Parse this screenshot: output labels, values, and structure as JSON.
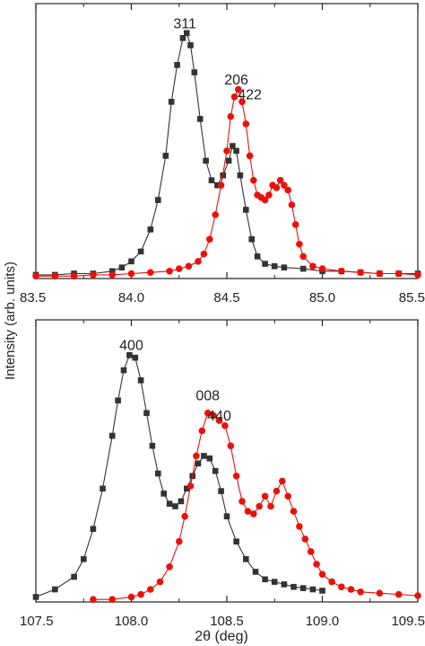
{
  "figure": {
    "ylabel": "Intensity (arb. units)",
    "xlabel": "2θ (deg)"
  },
  "colors": {
    "black_series": "#333333",
    "red_series": "#e8120c",
    "axis": "#222222"
  },
  "chart_data": [
    {
      "type": "line",
      "xlim": [
        83.5,
        85.5
      ],
      "ylim": [
        0,
        1.12
      ],
      "xticks": [
        "83.5",
        "84.0",
        "84.5",
        "85.0",
        "85.5"
      ],
      "grid": false,
      "annotations": [
        {
          "text": "311",
          "x": 84.28,
          "y": 1.02
        },
        {
          "text": "206",
          "x": 84.55,
          "y": 0.79
        },
        {
          "text": "422",
          "x": 84.62,
          "y": 0.73
        }
      ],
      "series": [
        {
          "color": "#333333",
          "marker": "square",
          "x": [
            83.5,
            83.6,
            83.7,
            83.8,
            83.9,
            83.95,
            84.0,
            84.05,
            84.1,
            84.14,
            84.18,
            84.21,
            84.24,
            84.27,
            84.29,
            84.31,
            84.33,
            84.36,
            84.39,
            84.42,
            84.45,
            84.48,
            84.51,
            84.53,
            84.55,
            84.57,
            84.6,
            84.63,
            84.66,
            84.7,
            84.75,
            84.8,
            84.9,
            85.0,
            85.1,
            85.2,
            85.3,
            85.4,
            85.5
          ],
          "y": [
            0.015,
            0.015,
            0.02,
            0.02,
            0.03,
            0.045,
            0.07,
            0.11,
            0.2,
            0.32,
            0.5,
            0.72,
            0.87,
            0.98,
            1.0,
            0.95,
            0.84,
            0.65,
            0.48,
            0.4,
            0.38,
            0.42,
            0.48,
            0.54,
            0.52,
            0.42,
            0.28,
            0.16,
            0.09,
            0.06,
            0.05,
            0.045,
            0.04,
            0.03,
            0.03,
            0.025,
            0.02,
            0.02,
            0.02
          ]
        },
        {
          "color": "#e8120c",
          "marker": "circle",
          "x": [
            83.5,
            83.6,
            83.7,
            83.8,
            83.9,
            84.0,
            84.1,
            84.2,
            84.25,
            84.3,
            84.35,
            84.38,
            84.41,
            84.44,
            84.47,
            84.5,
            84.52,
            84.54,
            84.56,
            84.58,
            84.6,
            84.62,
            84.64,
            84.66,
            84.68,
            84.7,
            84.72,
            84.74,
            84.76,
            84.78,
            84.8,
            84.82,
            84.84,
            84.86,
            84.88,
            84.9,
            84.95,
            85.0,
            85.1,
            85.2,
            85.3,
            85.4,
            85.5
          ],
          "y": [
            0.01,
            0.01,
            0.01,
            0.015,
            0.015,
            0.02,
            0.025,
            0.03,
            0.04,
            0.05,
            0.07,
            0.1,
            0.16,
            0.26,
            0.38,
            0.52,
            0.66,
            0.74,
            0.77,
            0.72,
            0.63,
            0.5,
            0.4,
            0.34,
            0.33,
            0.32,
            0.34,
            0.38,
            0.37,
            0.4,
            0.38,
            0.36,
            0.3,
            0.22,
            0.14,
            0.09,
            0.05,
            0.04,
            0.03,
            0.025,
            0.02,
            0.02,
            0.015
          ]
        }
      ]
    },
    {
      "type": "line",
      "xlim": [
        107.5,
        109.5
      ],
      "ylim": [
        0,
        1.12
      ],
      "xticks": [
        "107.5",
        "108.0",
        "108.5",
        "109.0",
        "109.5"
      ],
      "grid": false,
      "annotations": [
        {
          "text": "400",
          "x": 108.0,
          "y": 1.0
        },
        {
          "text": "008",
          "x": 108.4,
          "y": 0.8
        },
        {
          "text": "440",
          "x": 108.46,
          "y": 0.72
        }
      ],
      "series": [
        {
          "color": "#333333",
          "marker": "square",
          "x": [
            107.5,
            107.6,
            107.7,
            107.75,
            107.8,
            107.85,
            107.9,
            107.93,
            107.96,
            107.99,
            108.02,
            108.05,
            108.08,
            108.11,
            108.14,
            108.17,
            108.2,
            108.23,
            108.26,
            108.29,
            108.32,
            108.35,
            108.38,
            108.41,
            108.44,
            108.47,
            108.5,
            108.55,
            108.6,
            108.65,
            108.7,
            108.75,
            108.8,
            108.85,
            108.9,
            108.95,
            109.0
          ],
          "y": [
            0.02,
            0.05,
            0.1,
            0.17,
            0.29,
            0.45,
            0.66,
            0.8,
            0.92,
            0.98,
            0.97,
            0.88,
            0.75,
            0.62,
            0.51,
            0.43,
            0.39,
            0.38,
            0.4,
            0.45,
            0.5,
            0.55,
            0.58,
            0.57,
            0.52,
            0.44,
            0.34,
            0.24,
            0.17,
            0.12,
            0.09,
            0.08,
            0.07,
            0.06,
            0.055,
            0.05,
            0.045
          ]
        },
        {
          "color": "#e8120c",
          "marker": "circle",
          "x": [
            107.8,
            107.9,
            108.0,
            108.05,
            108.1,
            108.15,
            108.2,
            108.25,
            108.28,
            108.31,
            108.34,
            108.37,
            108.4,
            108.43,
            108.46,
            108.49,
            108.52,
            108.55,
            108.58,
            108.61,
            108.64,
            108.67,
            108.7,
            108.73,
            108.76,
            108.79,
            108.82,
            108.85,
            108.88,
            108.91,
            108.94,
            108.97,
            109.0,
            109.05,
            109.1,
            109.15,
            109.2,
            109.3,
            109.4,
            109.5
          ],
          "y": [
            0.01,
            0.01,
            0.02,
            0.03,
            0.05,
            0.08,
            0.14,
            0.24,
            0.34,
            0.46,
            0.58,
            0.68,
            0.75,
            0.74,
            0.72,
            0.7,
            0.62,
            0.5,
            0.4,
            0.36,
            0.35,
            0.38,
            0.42,
            0.38,
            0.44,
            0.48,
            0.42,
            0.36,
            0.3,
            0.25,
            0.2,
            0.15,
            0.11,
            0.08,
            0.06,
            0.05,
            0.04,
            0.035,
            0.03,
            0.025
          ]
        }
      ]
    }
  ]
}
